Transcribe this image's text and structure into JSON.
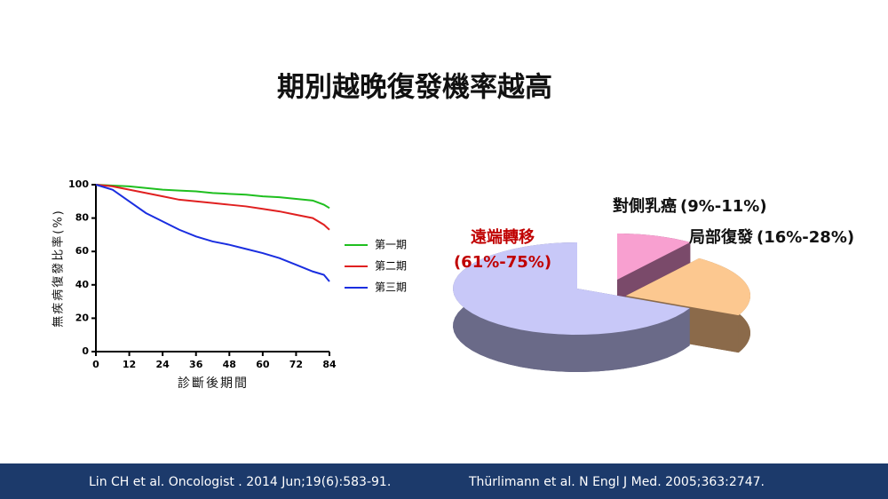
{
  "title": "期別越晚復發機率越高",
  "chart_data": [
    {
      "type": "line",
      "ylabel": "無疾病復發比率(%)",
      "xlabel": "診斷後期間",
      "x": [
        0,
        6,
        12,
        18,
        24,
        30,
        36,
        42,
        48,
        54,
        60,
        66,
        72,
        78,
        82,
        84
      ],
      "series": [
        {
          "name": "第一期",
          "color": "#1fbf1f",
          "values": [
            100,
            99.5,
            99,
            98,
            97,
            96.5,
            96,
            95,
            94.5,
            94,
            93,
            92.5,
            91.5,
            90.5,
            88,
            86
          ]
        },
        {
          "name": "第二期",
          "color": "#e02020",
          "values": [
            100,
            99,
            97,
            95,
            93,
            91,
            90,
            89,
            88,
            87,
            85.5,
            84,
            82,
            80,
            76,
            73
          ]
        },
        {
          "name": "第三期",
          "color": "#1a2ee0",
          "values": [
            100,
            97,
            90,
            83,
            78,
            73,
            69,
            66,
            64,
            61.5,
            59,
            56,
            52,
            48,
            46,
            42
          ]
        }
      ],
      "xlim": [
        0,
        84
      ],
      "xticks": [
        0,
        12,
        24,
        36,
        48,
        60,
        72,
        84
      ],
      "ylim": [
        0,
        100
      ],
      "yticks": [
        0,
        20,
        40,
        60,
        80,
        100
      ]
    },
    {
      "type": "pie",
      "categories": [
        "對側乳癌",
        "局部復發",
        "遠端轉移"
      ],
      "ranges": [
        "(9%-11%)",
        "(16%-28%)",
        "(61%-75%)"
      ],
      "values": [
        10,
        22,
        68
      ],
      "colors": [
        "#f8a0d0",
        "#fcc890",
        "#c8c8f8"
      ],
      "side_colors": [
        "#7a4a6a",
        "#8b6a4a",
        "#6a6a88"
      ]
    }
  ],
  "footer": [
    "Lin CH et al. Oncologist . 2014 Jun;19(6):583-91.",
    "Thürlimann et al. N Engl J Med. 2005;363:2747."
  ]
}
